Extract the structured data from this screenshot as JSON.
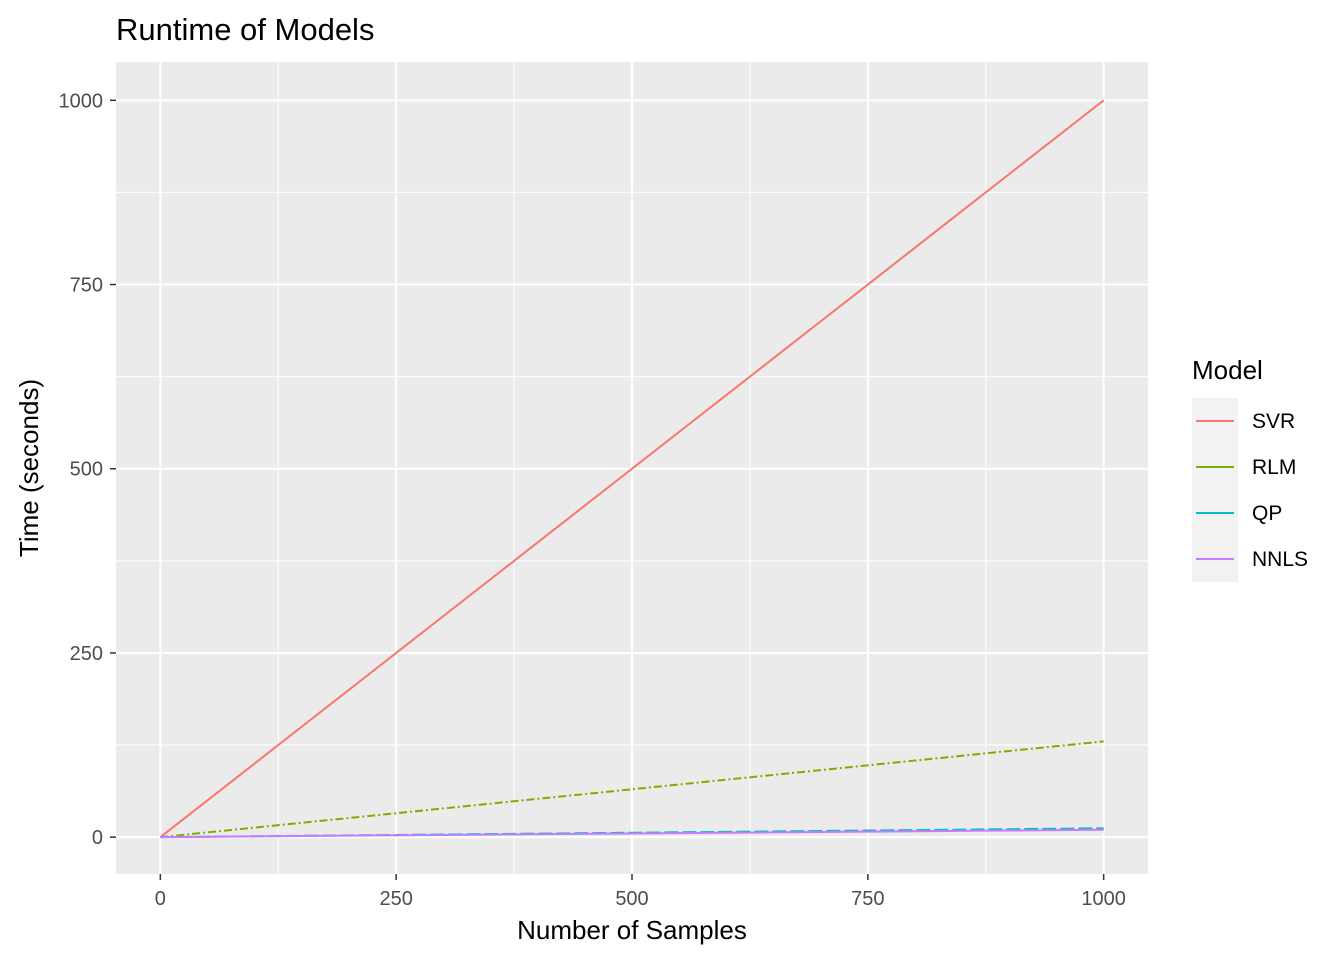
{
  "chart_data": {
    "type": "line",
    "title": "Runtime of Models",
    "xlabel": "Number of Samples",
    "ylabel": "Time (seconds)",
    "xlim": [
      -47,
      1047
    ],
    "ylim": [
      -50,
      1052
    ],
    "xticks": [
      0,
      250,
      500,
      750,
      1000
    ],
    "yticks": [
      0,
      250,
      500,
      750,
      1000
    ],
    "x": [
      0,
      50,
      100,
      150,
      200,
      250,
      300,
      350,
      400,
      450,
      500,
      550,
      600,
      650,
      700,
      750,
      800,
      850,
      900,
      950,
      1000
    ],
    "legend_title": "Model",
    "legend_position": "right",
    "background": "#ebebeb",
    "grid": true,
    "series": [
      {
        "name": "SVR",
        "color": "#F8766D",
        "dash": "solid",
        "values": [
          0,
          50,
          100,
          150,
          200,
          250,
          300,
          350,
          400,
          450,
          500,
          550,
          600,
          650,
          700,
          750,
          800,
          850,
          900,
          950,
          1000
        ]
      },
      {
        "name": "RLM",
        "color": "#7CAE00",
        "dash": "dashdot",
        "values": [
          0,
          6.5,
          13,
          19.5,
          26,
          32.5,
          39,
          45.5,
          52,
          58.5,
          65,
          71.5,
          78,
          84.5,
          91,
          97.5,
          104,
          110.5,
          117,
          123.5,
          130
        ]
      },
      {
        "name": "QP",
        "color": "#00BFC4",
        "dash": "longdash",
        "values": [
          0,
          0.6,
          1.2,
          1.8,
          2.4,
          3,
          3.6,
          4.2,
          4.8,
          5.4,
          6,
          6.6,
          7.2,
          7.8,
          8.4,
          9,
          9.6,
          10.2,
          10.8,
          11.4,
          12
        ]
      },
      {
        "name": "NNLS",
        "color": "#C77CFF",
        "dash": "solid",
        "values": [
          0,
          0.5,
          1,
          1.5,
          2,
          2.5,
          3,
          3.5,
          4,
          4.5,
          5,
          5.5,
          6,
          6.5,
          7,
          7.5,
          8,
          8.5,
          9,
          9.5,
          10
        ]
      }
    ]
  }
}
